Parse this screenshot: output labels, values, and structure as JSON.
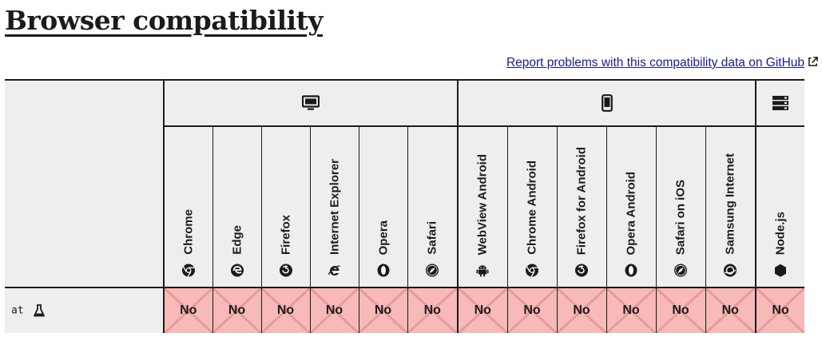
{
  "page": {
    "title": "Browser compatibility",
    "report_link": "Report problems with this compatibility data on GitHub"
  },
  "platforms": [
    {
      "icon": "desktop-icon",
      "span": 6
    },
    {
      "icon": "mobile-icon",
      "span": 6
    },
    {
      "icon": "server-icon",
      "span": 1
    }
  ],
  "browsers": [
    {
      "name": "Chrome",
      "icon": "chrome-icon"
    },
    {
      "name": "Edge",
      "icon": "edge-icon"
    },
    {
      "name": "Firefox",
      "icon": "firefox-icon"
    },
    {
      "name": "Internet Explorer",
      "icon": "internet-explorer-icon"
    },
    {
      "name": "Opera",
      "icon": "opera-icon"
    },
    {
      "name": "Safari",
      "icon": "safari-icon"
    },
    {
      "name": "WebView Android",
      "icon": "android-icon"
    },
    {
      "name": "Chrome Android",
      "icon": "chrome-icon"
    },
    {
      "name": "Firefox for Android",
      "icon": "firefox-icon"
    },
    {
      "name": "Opera Android",
      "icon": "opera-icon"
    },
    {
      "name": "Safari on iOS",
      "icon": "safari-icon"
    },
    {
      "name": "Samsung Internet",
      "icon": "samsung-internet-icon"
    },
    {
      "name": "Node.js",
      "icon": "nodejs-icon"
    }
  ],
  "feature": {
    "name": "at",
    "icon": "flask-icon",
    "support": [
      "No",
      "No",
      "No",
      "No",
      "No",
      "No",
      "No",
      "No",
      "No",
      "No",
      "No",
      "No",
      "No"
    ]
  },
  "colors": {
    "no_support_bg": "#f8b9b9",
    "no_support_cross": "#e79a9a",
    "header_bg": "#eeeeee",
    "link": "#1b1b8f"
  }
}
